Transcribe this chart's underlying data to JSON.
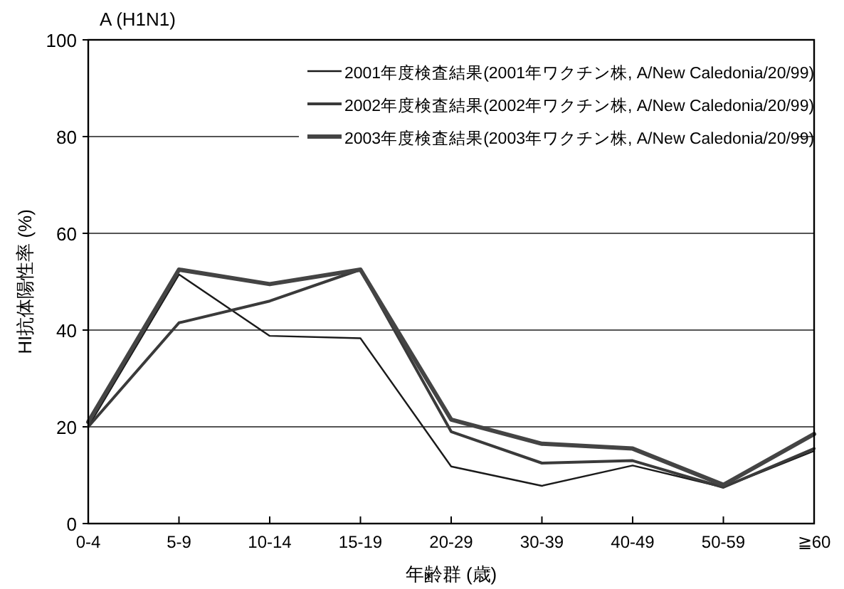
{
  "chart_data": {
    "type": "line",
    "title": "A (H1N1)",
    "xlabel": "年齢群 (歳)",
    "ylabel": "HI抗体陽性率 (%)",
    "categories": [
      "0-4",
      "5-9",
      "10-14",
      "15-19",
      "20-29",
      "30-39",
      "40-49",
      "50-59",
      "≧60"
    ],
    "series": [
      {
        "name": "2001年度検査結果(2001年ワクチン株, A/New Caledonia/20/99)",
        "color": "#1a1a1a",
        "values": [
          20,
          51.5,
          38.8,
          38.3,
          11.8,
          7.8,
          12,
          7.5,
          15
        ]
      },
      {
        "name": "2002年度検査結果(2002年ワクチン株, A/New Caledonia/20/99)",
        "color": "#3a3a3a",
        "values": [
          20,
          41.5,
          46,
          52.5,
          19,
          12.5,
          13,
          7.5,
          15.5
        ]
      },
      {
        "name": "2003年度検査結果(2003年ワクチン株, A/New Caledonia/20/99)",
        "color": "#444444",
        "values": [
          21,
          52.5,
          49.5,
          52.5,
          21.5,
          16.5,
          15.5,
          8,
          18.5
        ]
      }
    ],
    "ylim": [
      0,
      100
    ],
    "yticks": [
      0,
      20,
      40,
      60,
      80,
      100
    ],
    "grid": "y",
    "legend": "top right",
    "marker": "none",
    "line_style": "solid"
  }
}
